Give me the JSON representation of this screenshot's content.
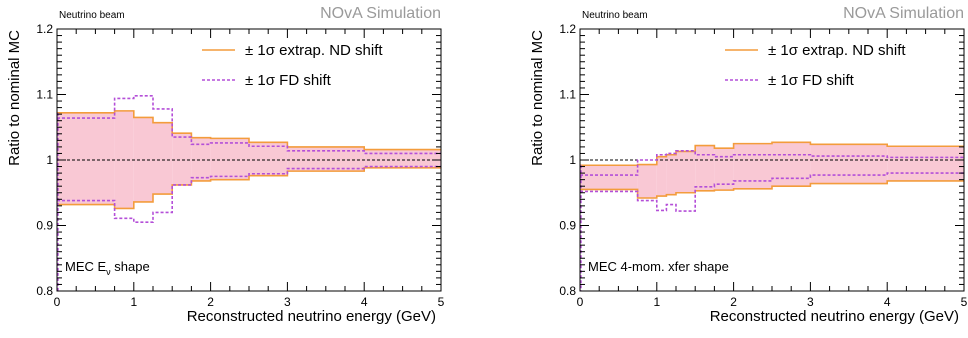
{
  "chart_data": [
    {
      "type": "line",
      "tag": "Neutrino beam",
      "watermark": "NOvA Simulation",
      "panel_label": "MEC E",
      "panel_label_sub": "ν",
      "panel_label_suffix": " shape",
      "xlabel": "Reconstructed neutrino energy (GeV)",
      "ylabel": "Ratio to nominal MC",
      "xlim": [
        0,
        5
      ],
      "ylim": [
        0.8,
        1.2
      ],
      "xticks": [
        0,
        1,
        2,
        3,
        4,
        5
      ],
      "yticks": [
        0.8,
        0.9,
        1,
        1.1,
        1.2
      ],
      "ytick_labels": [
        "0.8",
        "0.9",
        "1",
        "1.1",
        "1.2"
      ],
      "reference_line": 1,
      "legend": [
        {
          "label": "± 1σ extrap. ND shift",
          "color": "#f39c3c",
          "style": "solid"
        },
        {
          "label": "± 1σ FD shift",
          "color": "#b44fd8",
          "style": "dashed"
        }
      ],
      "band_color": "#f9c8d4",
      "bin_edges": [
        0,
        0.75,
        1.0,
        1.25,
        1.5,
        1.75,
        2.0,
        2.5,
        3.0,
        4.0,
        5.0
      ],
      "series": [
        {
          "name": "± 1σ extrap. ND shift",
          "role": "upper",
          "values": [
            1.072,
            1.075,
            1.065,
            1.057,
            1.041,
            1.034,
            1.033,
            1.027,
            1.02,
            1.016
          ]
        },
        {
          "name": "± 1σ extrap. ND shift",
          "role": "lower",
          "values": [
            0.932,
            0.926,
            0.936,
            0.948,
            0.962,
            0.968,
            0.97,
            0.976,
            0.983,
            0.988
          ]
        },
        {
          "name": "± 1σ FD shift",
          "role": "upper",
          "values": [
            1.064,
            1.094,
            1.098,
            1.078,
            1.035,
            1.024,
            1.026,
            1.021,
            1.014,
            1.01
          ]
        },
        {
          "name": "± 1σ FD shift",
          "role": "lower",
          "values": [
            0.938,
            0.911,
            0.905,
            0.92,
            0.962,
            0.973,
            0.975,
            0.979,
            0.987,
            0.99
          ]
        }
      ]
    },
    {
      "type": "line",
      "tag": "Neutrino beam",
      "watermark": "NOvA Simulation",
      "panel_label": "MEC 4-mom. xfer shape",
      "panel_label_sub": "",
      "panel_label_suffix": "",
      "xlabel": "Reconstructed neutrino energy (GeV)",
      "ylabel": "Ratio to nominal MC",
      "xlim": [
        0,
        5
      ],
      "ylim": [
        0.8,
        1.2
      ],
      "xticks": [
        0,
        1,
        2,
        3,
        4,
        5
      ],
      "yticks": [
        0.8,
        0.9,
        1,
        1.1,
        1.2
      ],
      "ytick_labels": [
        "0.8",
        "0.9",
        "1",
        "1.1",
        "1.2"
      ],
      "reference_line": 1,
      "legend": [
        {
          "label": "± 1σ extrap. ND shift",
          "color": "#f39c3c",
          "style": "solid"
        },
        {
          "label": "± 1σ FD shift",
          "color": "#b44fd8",
          "style": "dashed"
        }
      ],
      "band_color": "#f9c8d4",
      "bin_edges": [
        0,
        0.75,
        1.0,
        1.125,
        1.25,
        1.5,
        1.75,
        2.0,
        2.5,
        3.0,
        4.0,
        5.0
      ],
      "series": [
        {
          "name": "± 1σ extrap. ND shift",
          "role": "upper",
          "values": [
            0.992,
            0.993,
            1.005,
            1.008,
            1.013,
            1.022,
            1.018,
            1.025,
            1.027,
            1.024,
            1.021
          ]
        },
        {
          "name": "± 1σ extrap. ND shift",
          "role": "lower",
          "values": [
            0.955,
            0.942,
            0.945,
            0.947,
            0.95,
            0.953,
            0.954,
            0.956,
            0.96,
            0.964,
            0.968
          ]
        },
        {
          "name": "± 1σ FD shift",
          "role": "upper",
          "values": [
            0.977,
            1.0,
            1.008,
            1.01,
            1.014,
            1.008,
            1.005,
            1.008,
            1.008,
            1.006,
            1.004
          ]
        },
        {
          "name": "± 1σ FD shift",
          "role": "lower",
          "values": [
            0.952,
            0.938,
            0.923,
            0.932,
            0.922,
            0.959,
            0.963,
            0.968,
            0.972,
            0.977,
            0.98
          ]
        }
      ]
    }
  ]
}
